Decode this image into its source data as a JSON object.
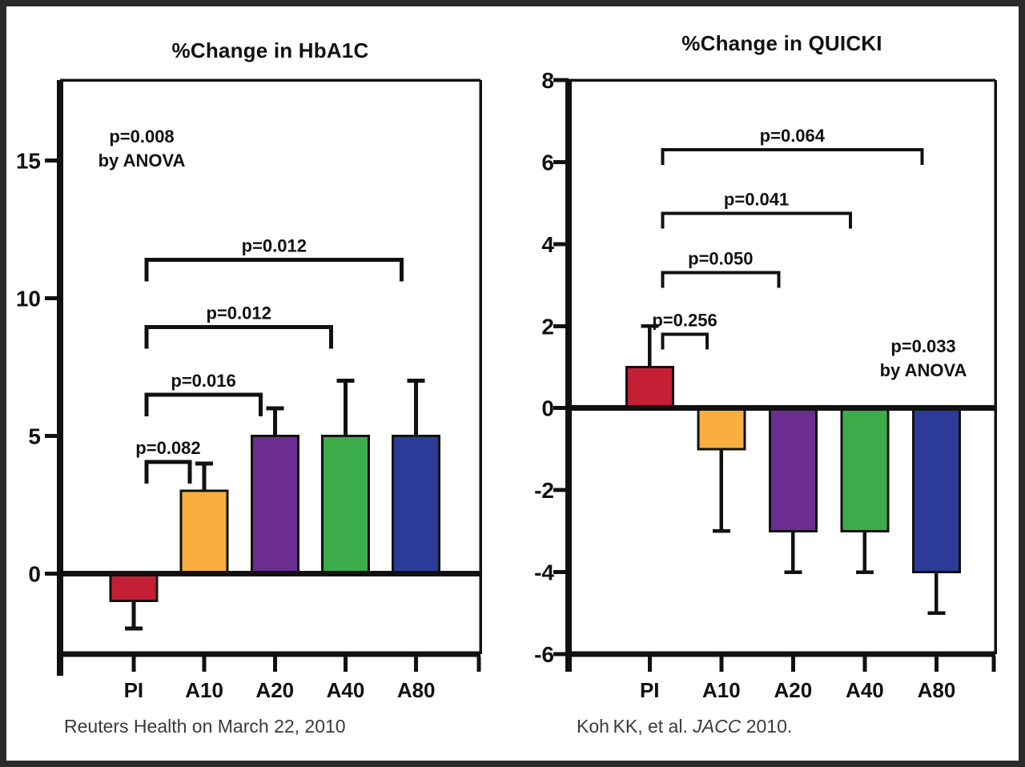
{
  "chart_data": [
    {
      "type": "bar",
      "title": "%Change in HbA1C",
      "categories": [
        "PI",
        "A10",
        "A20",
        "A40",
        "A80"
      ],
      "values": [
        -1,
        3,
        5,
        5,
        5
      ],
      "error_whiskers": [
        -1,
        1,
        1,
        2,
        2
      ],
      "bar_colors": [
        "#C41F35",
        "#F9AE3F",
        "#6B2D90",
        "#3CAC4A",
        "#2C3B97"
      ],
      "ylim": [
        -2.93,
        17.93
      ],
      "yticks": [
        0,
        5,
        10,
        15
      ],
      "grid": false,
      "legend": null,
      "anova_note": {
        "line1": "p=0.008",
        "line2": "by ANOVA"
      },
      "significance_brackets": [
        {
          "from": "PI",
          "to": "A10",
          "label": "p=0.082",
          "y": 4.05
        },
        {
          "from": "PI",
          "to": "A20",
          "label": "p=0.016",
          "y": 6.5
        },
        {
          "from": "PI",
          "to": "A40",
          "label": "p=0.012",
          "y": 8.95
        },
        {
          "from": "PI",
          "to": "A80",
          "label": "p=0.012",
          "y": 11.4
        }
      ],
      "footer_parts": [
        {
          "text": "Reuters Health on March 22, 2010",
          "italic": false
        }
      ]
    },
    {
      "type": "bar",
      "title": "%Change in QUICKI",
      "categories": [
        "PI",
        "A10",
        "A20",
        "A40",
        "A80"
      ],
      "values": [
        1,
        -1,
        -3,
        -3,
        -4
      ],
      "error_whiskers": [
        1,
        -2,
        -1,
        -1,
        -1
      ],
      "bar_colors": [
        "#C41F35",
        "#F9AE3F",
        "#6B2D90",
        "#3CAC4A",
        "#2C3B97"
      ],
      "ylim": [
        -6,
        8
      ],
      "yticks": [
        -6,
        -4,
        -2,
        0,
        2,
        4,
        6,
        8
      ],
      "grid": false,
      "legend": null,
      "anova_note": {
        "line1": "p=0.033",
        "line2": "by ANOVA"
      },
      "significance_brackets": [
        {
          "from": "PI",
          "to": "A10",
          "label": "p=0.256",
          "y": 1.8
        },
        {
          "from": "PI",
          "to": "A20",
          "label": "p=0.050",
          "y": 3.3
        },
        {
          "from": "PI",
          "to": "A40",
          "label": "p=0.041",
          "y": 4.75
        },
        {
          "from": "PI",
          "to": "A80",
          "label": "p=0.064",
          "y": 6.3
        }
      ],
      "footer_parts": [
        {
          "text": "Koh KK, et al. ",
          "italic": false
        },
        {
          "text": "JACC",
          "italic": true
        },
        {
          "text": " 2010.",
          "italic": false
        }
      ]
    }
  ]
}
